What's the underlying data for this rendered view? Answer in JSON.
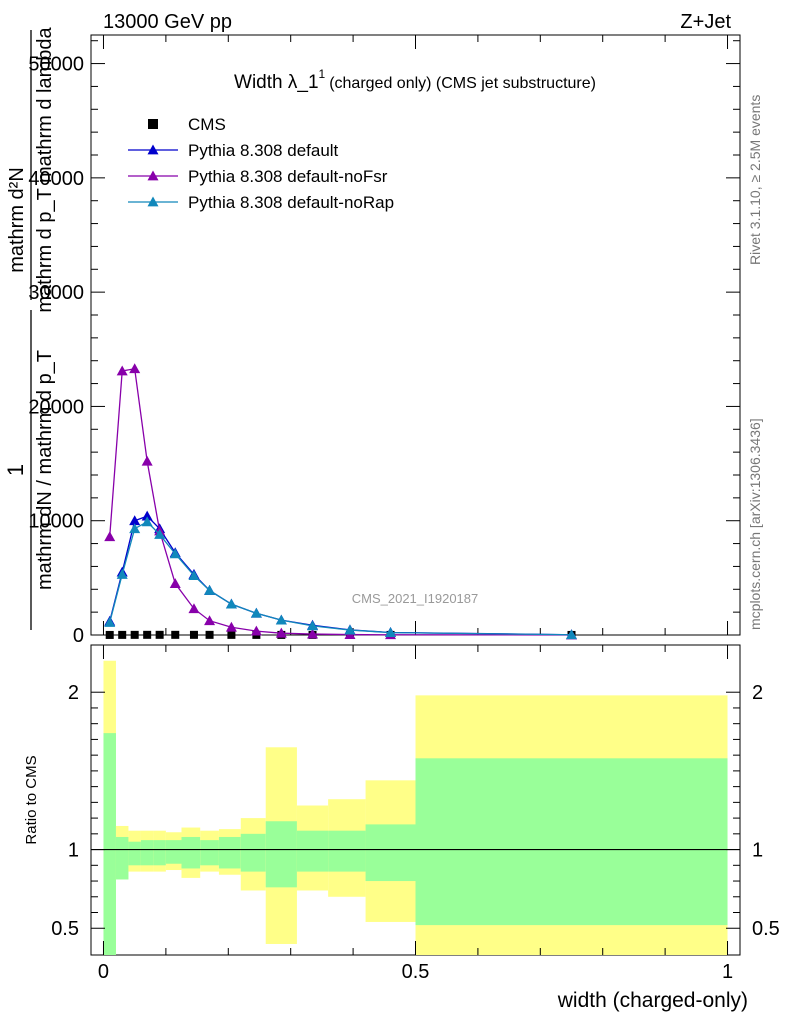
{
  "header": {
    "energy": "13000 GeV pp",
    "process": "Z+Jet"
  },
  "main_panel": {
    "title": "Width λ_1",
    "title_sup": "1",
    "title_suffix": "(charged only) (CMS jet substructure)",
    "ylabel_numerator": "mathrm d²N",
    "ylabel_denominator": "mathrm d p_T mathrm d lambda",
    "ylabel_prefix_num": "1",
    "ylabel_prefix_den": "mathrm dN / mathrm d p_T",
    "watermark": "CMS_2021_I1920187",
    "side_label_top": "Rivet 3.1.10, ≥ 2.5M events",
    "side_label_bottom": "mcplots.cern.ch [arXiv:1306.3436]"
  },
  "ratio_panel": {
    "ylabel": "Ratio to CMS",
    "xlabel": "width (charged-only)"
  },
  "colors": {
    "cms": "#000000",
    "default": "#0000cc",
    "noFsr": "#8800aa",
    "noRap": "#1188bb",
    "band_inner": "#99ff99",
    "band_outer": "#ffff88"
  },
  "chart_data": [
    {
      "type": "line",
      "xlim": [
        -0.02,
        1.02
      ],
      "ylim": [
        0,
        52500
      ],
      "yticks": [
        0,
        10000,
        20000,
        30000,
        40000,
        50000
      ],
      "ytick_labels": [
        "0",
        "10000",
        "20000",
        "30000",
        "40000",
        "50000"
      ],
      "legend_position": "top-left",
      "grid": false,
      "series": [
        {
          "name": "CMS",
          "marker": "square",
          "x": [
            0.01,
            0.03,
            0.05,
            0.07,
            0.09,
            0.115,
            0.145,
            0.17,
            0.205,
            0.245,
            0.285,
            0.335,
            0.395,
            0.46,
            0.75
          ],
          "y": [
            5,
            10,
            12,
            15,
            15,
            14,
            14,
            13,
            12,
            10,
            8,
            7,
            6,
            5,
            4
          ]
        },
        {
          "name": "Pythia 8.308 default",
          "marker": "triangle",
          "x": [
            0.01,
            0.03,
            0.05,
            0.07,
            0.09,
            0.115,
            0.145,
            0.17,
            0.205,
            0.245,
            0.285,
            0.335,
            0.395,
            0.46,
            0.75
          ],
          "y": [
            1200,
            5500,
            10000,
            10400,
            9300,
            7200,
            5300,
            3900,
            2700,
            1900,
            1300,
            850,
            450,
            220,
            25
          ]
        },
        {
          "name": "Pythia 8.308 default-noFsr",
          "marker": "triangle",
          "x": [
            0.01,
            0.03,
            0.05,
            0.07,
            0.09,
            0.115,
            0.145,
            0.17,
            0.205,
            0.245,
            0.285,
            0.335,
            0.395,
            0.46,
            0.75
          ],
          "y": [
            8600,
            23100,
            23300,
            15200,
            9100,
            4500,
            2300,
            1250,
            680,
            340,
            160,
            80,
            40,
            20,
            5
          ]
        },
        {
          "name": "Pythia 8.308 default-noRap",
          "marker": "triangle",
          "x": [
            0.01,
            0.03,
            0.05,
            0.07,
            0.09,
            0.115,
            0.145,
            0.17,
            0.205,
            0.245,
            0.285,
            0.335,
            0.395,
            0.46,
            0.75
          ],
          "y": [
            1100,
            5300,
            9300,
            9900,
            8800,
            7100,
            5200,
            3900,
            2700,
            1900,
            1300,
            800,
            430,
            210,
            25
          ]
        }
      ]
    },
    {
      "type": "area",
      "ylabel": "Ratio to CMS",
      "xlabel": "width (charged-only)",
      "xlim": [
        -0.02,
        1.02
      ],
      "ylim": [
        0.33,
        2.3
      ],
      "xticks": [
        0,
        0.5,
        1
      ],
      "xtick_labels": [
        "0",
        "0.5",
        "1"
      ],
      "yticks": [
        0.5,
        1,
        2
      ],
      "ytick_labels": [
        "0.5",
        "1",
        "2"
      ],
      "bins": [
        {
          "lo": 0.0,
          "hi": 0.02,
          "inner": [
            0.31,
            1.74
          ],
          "outer": [
            0.31,
            2.2
          ]
        },
        {
          "lo": 0.02,
          "hi": 0.04,
          "inner": [
            0.81,
            1.08
          ],
          "outer": [
            0.81,
            1.15
          ]
        },
        {
          "lo": 0.04,
          "hi": 0.06,
          "inner": [
            0.9,
            1.05
          ],
          "outer": [
            0.86,
            1.12
          ]
        },
        {
          "lo": 0.06,
          "hi": 0.08,
          "inner": [
            0.9,
            1.06
          ],
          "outer": [
            0.86,
            1.12
          ]
        },
        {
          "lo": 0.08,
          "hi": 0.1,
          "inner": [
            0.9,
            1.06
          ],
          "outer": [
            0.86,
            1.12
          ]
        },
        {
          "lo": 0.1,
          "hi": 0.125,
          "inner": [
            0.91,
            1.06
          ],
          "outer": [
            0.87,
            1.11
          ]
        },
        {
          "lo": 0.125,
          "hi": 0.155,
          "inner": [
            0.88,
            1.08
          ],
          "outer": [
            0.82,
            1.14
          ]
        },
        {
          "lo": 0.155,
          "hi": 0.185,
          "inner": [
            0.9,
            1.06
          ],
          "outer": [
            0.86,
            1.12
          ]
        },
        {
          "lo": 0.185,
          "hi": 0.22,
          "inner": [
            0.88,
            1.08
          ],
          "outer": [
            0.84,
            1.13
          ]
        },
        {
          "lo": 0.22,
          "hi": 0.26,
          "inner": [
            0.86,
            1.1
          ],
          "outer": [
            0.74,
            1.2
          ]
        },
        {
          "lo": 0.26,
          "hi": 0.31,
          "inner": [
            0.76,
            1.18
          ],
          "outer": [
            0.4,
            1.65
          ]
        },
        {
          "lo": 0.31,
          "hi": 0.36,
          "inner": [
            0.86,
            1.12
          ],
          "outer": [
            0.74,
            1.28
          ]
        },
        {
          "lo": 0.36,
          "hi": 0.42,
          "inner": [
            0.86,
            1.12
          ],
          "outer": [
            0.7,
            1.32
          ]
        },
        {
          "lo": 0.42,
          "hi": 0.5,
          "inner": [
            0.8,
            1.16
          ],
          "outer": [
            0.54,
            1.44
          ]
        },
        {
          "lo": 0.5,
          "hi": 1.0,
          "inner": [
            0.52,
            1.58
          ],
          "outer": [
            0.3,
            1.98
          ]
        }
      ],
      "reference_line": 1.0
    }
  ]
}
